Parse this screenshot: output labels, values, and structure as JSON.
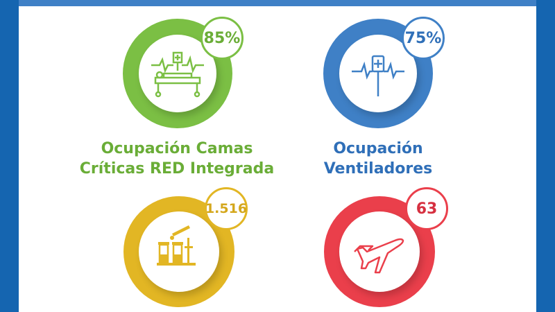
{
  "colors": {
    "frame": "#1565b0",
    "green": "#7bbf44",
    "blue": "#3f80c6",
    "yellow": "#e2b624",
    "red": "#ea3f4b"
  },
  "cards": [
    {
      "value": "85%",
      "label_line1": "Ocupación Camas",
      "label_line2": "Críticas RED Integrada",
      "icon": "hospital-bed-icon",
      "color": "#7bbf44",
      "text_color": "#6aad37"
    },
    {
      "value": "75%",
      "label_line1": "Ocupación",
      "label_line2": "Ventiladores",
      "icon": "ventilator-icon",
      "color": "#3f80c6",
      "text_color": "#2f6fb8"
    },
    {
      "value": "1.516",
      "icon": "test-tubes-icon",
      "color": "#e2b624",
      "text_color": "#d4a71c"
    },
    {
      "value": "63",
      "icon": "airplane-icon",
      "color": "#ea3f4b",
      "text_color": "#d63040"
    }
  ]
}
